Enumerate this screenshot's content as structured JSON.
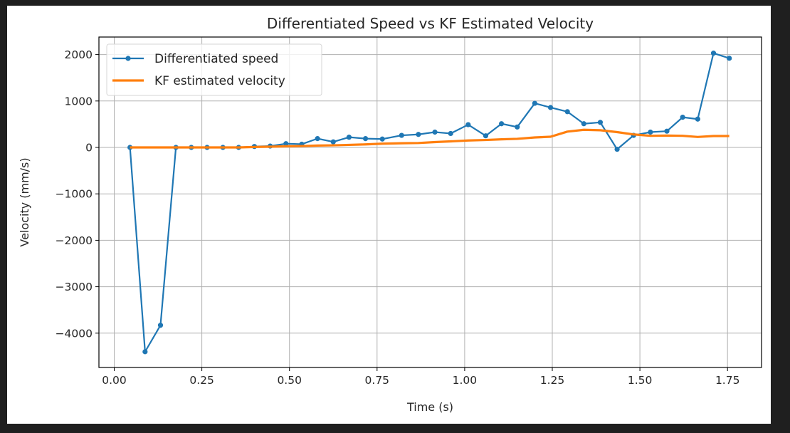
{
  "chart_data": {
    "type": "line",
    "title": "Differentiated Speed vs KF Estimated Velocity",
    "xlabel": "Time (s)",
    "ylabel": "Velocity (mm/s)",
    "xlim": [
      -0.045,
      1.8
    ],
    "ylim": [
      -4720,
      2400
    ],
    "xticks": [
      0.0,
      0.25,
      0.5,
      0.75,
      1.0,
      1.25,
      1.5,
      1.75
    ],
    "xtick_labels": [
      "0.00",
      "0.25",
      "0.50",
      "0.75",
      "1.00",
      "1.25",
      "1.50",
      "1.75"
    ],
    "yticks": [
      2000,
      1000,
      0,
      -1000,
      -2000,
      -3000,
      -4000
    ],
    "ytick_labels": [
      "2000",
      "1000",
      "0",
      "−1000",
      "−2000",
      "−3000",
      "−4000"
    ],
    "grid": true,
    "legend_position": "upper-left",
    "x": [
      0.045,
      0.088,
      0.132,
      0.176,
      0.22,
      0.265,
      0.31,
      0.355,
      0.4,
      0.445,
      0.49,
      0.535,
      0.58,
      0.625,
      0.67,
      0.717,
      0.765,
      0.82,
      0.868,
      0.915,
      0.96,
      1.01,
      1.06,
      1.105,
      1.15,
      1.2,
      1.245,
      1.293,
      1.34,
      1.387,
      1.435,
      1.482,
      1.53,
      1.577,
      1.622,
      1.665,
      1.71,
      1.755
    ],
    "series": [
      {
        "name": "Differentiated speed",
        "color": "#1f77b4",
        "marker": "dot",
        "values": [
          0,
          -4400,
          -3830,
          0,
          0,
          0,
          0,
          0,
          20,
          30,
          80,
          70,
          190,
          120,
          220,
          190,
          180,
          260,
          280,
          330,
          300,
          490,
          250,
          510,
          440,
          950,
          860,
          770,
          510,
          540,
          -40,
          260,
          330,
          350,
          650,
          610,
          2030,
          1920
        ]
      },
      {
        "name": "KF estimated velocity",
        "color": "#ff7f0e",
        "marker": "none",
        "values": [
          0,
          0,
          0,
          0,
          0,
          0,
          0,
          0,
          10,
          15,
          25,
          30,
          40,
          45,
          55,
          65,
          80,
          90,
          95,
          115,
          130,
          150,
          160,
          175,
          185,
          215,
          230,
          340,
          380,
          370,
          330,
          280,
          250,
          255,
          250,
          225,
          245,
          245
        ]
      }
    ]
  }
}
